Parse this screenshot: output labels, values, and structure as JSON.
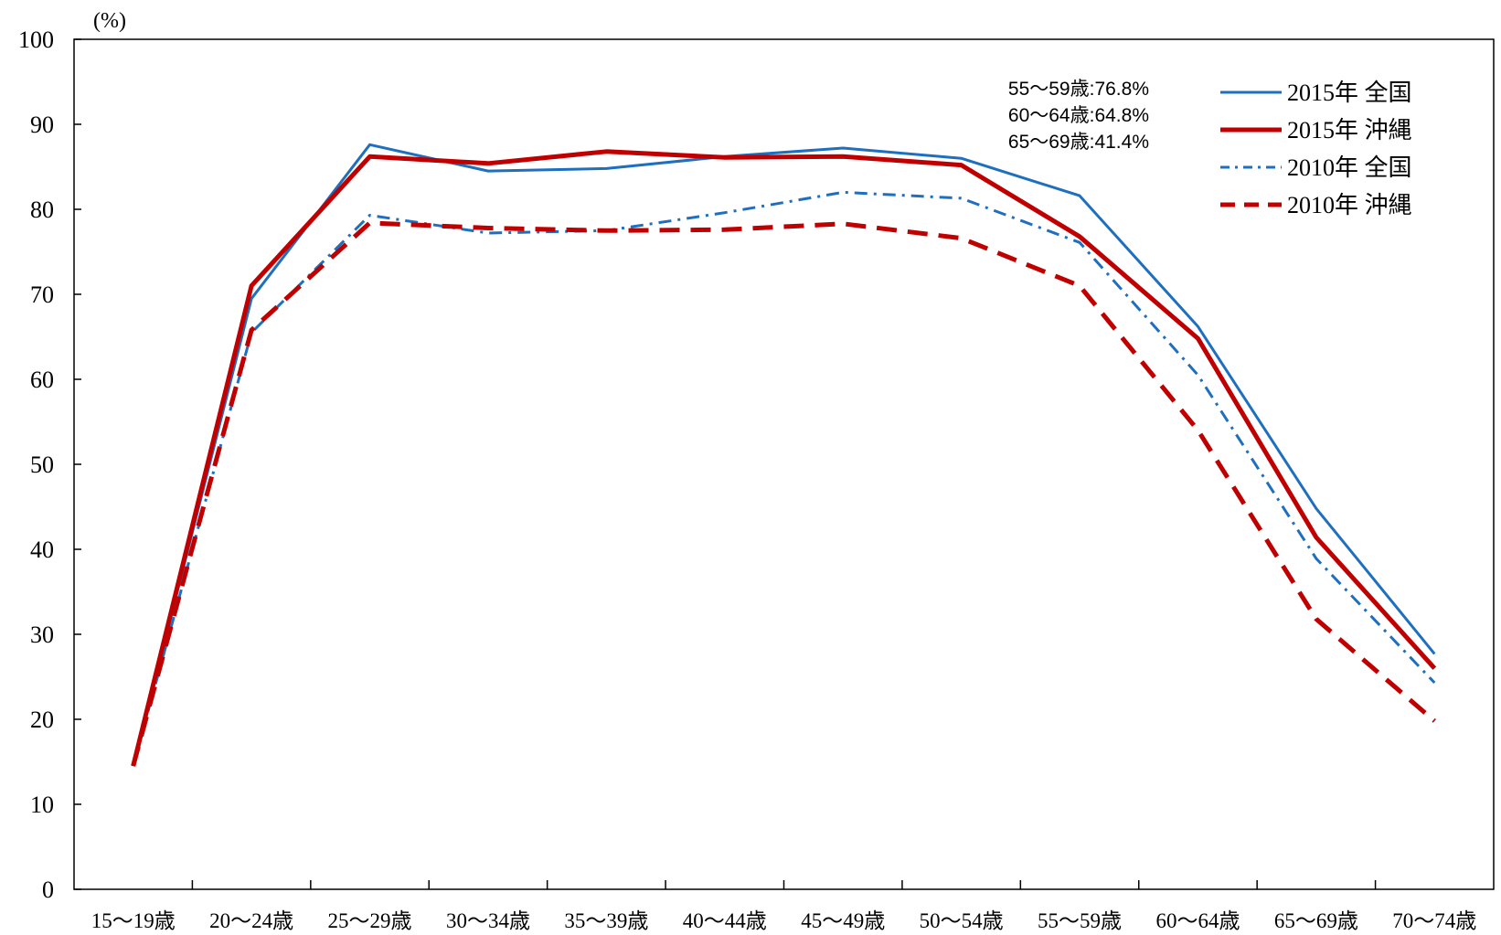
{
  "chart_data": {
    "type": "line",
    "y_unit_label": "(%)",
    "ylim": [
      0,
      100
    ],
    "y_ticks": [
      0,
      10,
      20,
      30,
      40,
      50,
      60,
      70,
      80,
      90,
      100
    ],
    "grid": false,
    "legend_position": "top-right",
    "categories": [
      "15〜19歳",
      "20〜24歳",
      "25〜29歳",
      "30〜34歳",
      "35〜39歳",
      "40〜44歳",
      "45〜49歳",
      "50〜54歳",
      "55〜59歳",
      "60〜64歳",
      "65〜69歳",
      "70〜74歳"
    ],
    "series": [
      {
        "name": "2015年 全国",
        "color": "#1f6fbf",
        "style": "solid",
        "width": 3,
        "values": [
          14.5,
          69.5,
          87.6,
          84.5,
          84.8,
          86.2,
          87.2,
          86.0,
          81.6,
          66.2,
          44.8,
          27.7
        ]
      },
      {
        "name": "2015年 沖縄",
        "color": "#c00000",
        "style": "solid",
        "width": 5,
        "values": [
          14.5,
          71.0,
          86.2,
          85.4,
          86.8,
          86.1,
          86.2,
          85.2,
          76.8,
          64.8,
          41.4,
          26.0
        ]
      },
      {
        "name": "2010年 全国",
        "color": "#1f6fbf",
        "style": "dashdot",
        "width": 3,
        "values": [
          14.5,
          65.5,
          79.3,
          77.2,
          77.5,
          79.6,
          82.0,
          81.3,
          76.1,
          60.5,
          38.9,
          24.3
        ]
      },
      {
        "name": "2010年 沖縄",
        "color": "#c00000",
        "style": "dashed",
        "width": 5,
        "values": [
          14.5,
          65.8,
          78.4,
          77.8,
          77.5,
          77.6,
          78.3,
          76.6,
          71.0,
          54.0,
          31.8,
          19.8
        ]
      }
    ],
    "annotations": [
      "55〜59歳:76.8%",
      "60〜64歳:64.8%",
      "65〜69歳:41.4%"
    ]
  }
}
